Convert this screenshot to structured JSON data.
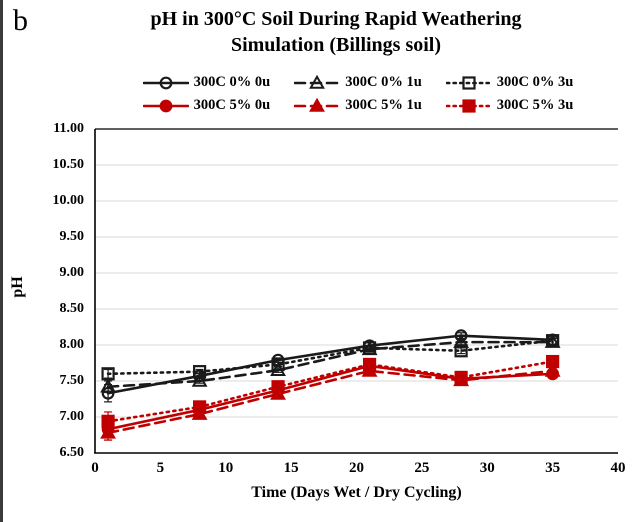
{
  "figure": {
    "panel_label": "b",
    "title_line1": "pH in 300°C Soil During Rapid Weathering",
    "title_line2": "Simulation (Billings soil)"
  },
  "chart_data": {
    "type": "line",
    "title": "pH in 300°C Soil During Rapid Weathering Simulation (Billings soil)",
    "xlabel": "Time (Days Wet / Dry Cycling)",
    "ylabel": "pH",
    "xlim": [
      0,
      40
    ],
    "ylim": [
      6.5,
      11.0
    ],
    "x_ticks": [
      0,
      5,
      10,
      15,
      20,
      25,
      30,
      35,
      40
    ],
    "y_ticks": [
      6.5,
      7.0,
      7.5,
      8.0,
      8.5,
      9.0,
      9.5,
      10.0,
      10.5,
      11.0
    ],
    "grid": true,
    "legend_position": "top",
    "x": [
      1,
      8,
      14,
      21,
      28,
      35
    ],
    "series": [
      {
        "name": "300C 0% 0u",
        "color": "#1a1a1a",
        "dash": "solid",
        "marker": "circle",
        "fill": "open",
        "values": [
          7.33,
          7.57,
          7.79,
          7.99,
          8.13,
          8.07
        ],
        "err": [
          0.12,
          0.04,
          0.03,
          0.04,
          0.04,
          0.06
        ]
      },
      {
        "name": "300C 0% 1u",
        "color": "#1a1a1a",
        "dash": "dashed",
        "marker": "triangle",
        "fill": "open",
        "values": [
          7.42,
          7.5,
          7.65,
          7.94,
          8.04,
          8.04
        ],
        "err": [
          0.08,
          0.03,
          0.03,
          0.03,
          0.04,
          0.05
        ]
      },
      {
        "name": "300C 0% 3u",
        "color": "#1a1a1a",
        "dash": "dotted",
        "marker": "square",
        "fill": "open",
        "values": [
          7.6,
          7.63,
          7.73,
          7.96,
          7.92,
          8.06
        ],
        "err": [
          0.06,
          0.03,
          0.03,
          0.03,
          0.04,
          0.05
        ]
      },
      {
        "name": "300C 5% 0u",
        "color": "#c00000",
        "dash": "solid",
        "marker": "circle",
        "fill": "filled",
        "values": [
          6.83,
          7.1,
          7.37,
          7.71,
          7.53,
          7.6
        ],
        "err": [
          0.15,
          0.05,
          0.03,
          0.03,
          0.03,
          0.04
        ]
      },
      {
        "name": "300C 5% 1u",
        "color": "#c00000",
        "dash": "dashed",
        "marker": "triangle",
        "fill": "filled",
        "values": [
          6.78,
          7.04,
          7.32,
          7.64,
          7.51,
          7.64
        ],
        "err": [
          0.1,
          0.04,
          0.03,
          0.03,
          0.03,
          0.04
        ]
      },
      {
        "name": "300C 5% 3u",
        "color": "#c00000",
        "dash": "dotted",
        "marker": "square",
        "fill": "filled",
        "values": [
          6.94,
          7.14,
          7.42,
          7.73,
          7.55,
          7.77
        ],
        "err": [
          0.13,
          0.04,
          0.03,
          0.03,
          0.03,
          0.04
        ]
      }
    ]
  }
}
